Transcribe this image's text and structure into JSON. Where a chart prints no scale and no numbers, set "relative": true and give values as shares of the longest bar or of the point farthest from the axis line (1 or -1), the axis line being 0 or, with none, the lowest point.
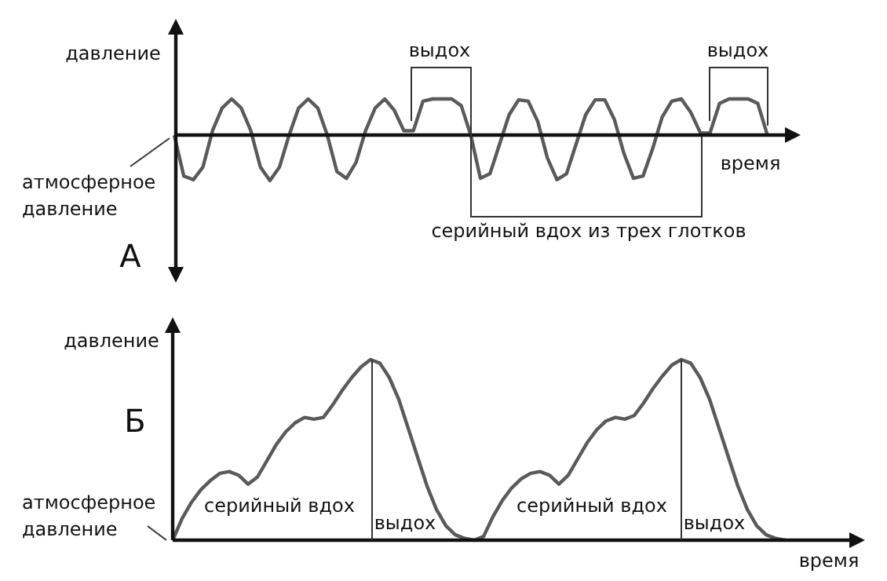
{
  "chart_data": [
    {
      "type": "line",
      "relative": true,
      "xlabel": "время",
      "ylabel": "давление",
      "categories": [
        null,
        null,
        null,
        null,
        null,
        null,
        null,
        null,
        null,
        null,
        null,
        null,
        null,
        null,
        null,
        null,
        null,
        null,
        null,
        null,
        null,
        null,
        null,
        null,
        null,
        null,
        null,
        null,
        null,
        null,
        null,
        null,
        null,
        null,
        null,
        null,
        null,
        null,
        null,
        null,
        null,
        null,
        null,
        null,
        null,
        null,
        null,
        null,
        null,
        null,
        null,
        null,
        null,
        null,
        null,
        null,
        null,
        null,
        null,
        null,
        null,
        null,
        null,
        null,
        null
      ],
      "series": [
        {
          "color": "#5a5a5a",
          "values": [
            0,
            -0.9,
            -0.98,
            -0.7,
            0.1,
            0.6,
            0.8,
            0.6,
            0.1,
            -0.7,
            -1,
            -0.7,
            0,
            0.6,
            0.8,
            0.6,
            0,
            -0.8,
            -0.95,
            -0.6,
            0.1,
            0.6,
            0.8,
            0.55,
            0.1,
            0.1,
            0.75,
            0.8,
            0.8,
            0.8,
            0.65,
            0,
            -0.95,
            -0.85,
            -0.2,
            0.45,
            0.78,
            0.75,
            0.3,
            -0.5,
            -0.98,
            -0.85,
            -0.2,
            0.45,
            0.78,
            0.78,
            0.35,
            -0.4,
            -0.95,
            -0.9,
            -0.3,
            0.4,
            0.75,
            0.8,
            0.5,
            0.05,
            0.05,
            0.7,
            0.8,
            0.8,
            0.8,
            0.7,
            0,
            null,
            null
          ]
        }
      ],
      "annotations": [
        "выдох",
        "выдох",
        "серийный вдох из трех глотков",
        "атмосферное давление",
        "А"
      ]
    },
    {
      "type": "line",
      "relative": true,
      "xlabel": "время",
      "ylabel": "давление",
      "categories": [
        null,
        null,
        null,
        null,
        null,
        null,
        null,
        null,
        null,
        null,
        null,
        null,
        null,
        null,
        null,
        null,
        null,
        null,
        null,
        null,
        null,
        null,
        null,
        null,
        null,
        null,
        null,
        null,
        null,
        null,
        null,
        null,
        null,
        null,
        null,
        null,
        null,
        null,
        null,
        null,
        null,
        null,
        null,
        null,
        null,
        null,
        null,
        null,
        null,
        null,
        null,
        null,
        null,
        null,
        null,
        null,
        null,
        null,
        null,
        null,
        null,
        null,
        null,
        null,
        null,
        null,
        null,
        null,
        null,
        null,
        null,
        null,
        null
      ],
      "series": [
        {
          "color": "#5a5a5a",
          "values": [
            0,
            0.12,
            0.21,
            0.28,
            0.33,
            0.37,
            0.38,
            0.36,
            0.31,
            0.35,
            0.44,
            0.53,
            0.6,
            0.65,
            0.68,
            0.67,
            0.68,
            0.75,
            0.83,
            0.9,
            0.96,
            1,
            0.98,
            0.9,
            0.78,
            0.62,
            0.46,
            0.3,
            0.17,
            0.08,
            0.03,
            0.01,
            0,
            0.02,
            0.13,
            0.22,
            0.29,
            0.34,
            0.37,
            0.38,
            0.36,
            0.31,
            0.36,
            0.45,
            0.54,
            0.61,
            0.66,
            0.68,
            0.67,
            0.69,
            0.76,
            0.84,
            0.91,
            0.97,
            1,
            0.98,
            0.9,
            0.78,
            0.62,
            0.46,
            0.3,
            0.17,
            0.08,
            0.03,
            0.01,
            0,
            null,
            null,
            null,
            null,
            null,
            null,
            null
          ]
        }
      ],
      "annotations": [
        "атмосферное давление",
        "Б",
        "серийный вдох",
        "выдох",
        "серийный вдох",
        "выдох"
      ]
    }
  ]
}
